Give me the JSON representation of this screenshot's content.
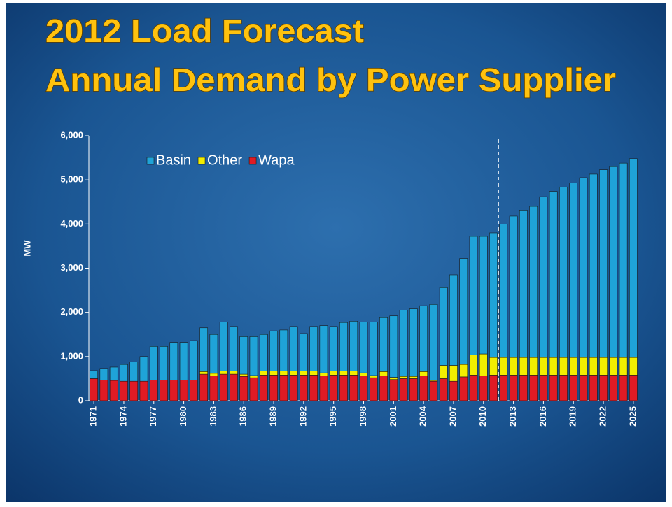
{
  "chart_data": {
    "type": "stacked_bar",
    "title": "2012 Load Forecast",
    "subtitle": "Annual Demand by Power Supplier",
    "y_label": "MW",
    "categories": [
      "1971",
      null,
      null,
      "1974",
      null,
      null,
      "1977",
      null,
      null,
      "1980",
      null,
      null,
      "1983",
      null,
      null,
      "1986",
      null,
      null,
      "1989",
      null,
      null,
      "1992",
      null,
      null,
      "1995",
      null,
      null,
      "1998",
      null,
      null,
      "2001",
      null,
      null,
      "2004",
      null,
      null,
      "2007",
      null,
      null,
      "2010",
      null,
      null,
      "2013",
      null,
      null,
      "2016",
      null,
      null,
      "2019",
      null,
      null,
      "2022",
      null,
      null,
      "2025"
    ],
    "series": [
      {
        "name": "Basin",
        "color": "#1fa3d8",
        "values": [
          180,
          260,
          300,
          380,
          440,
          560,
          760,
          760,
          850,
          850,
          890,
          990,
          880,
          1110,
          1010,
          850,
          880,
          830,
          910,
          930,
          1010,
          850,
          1010,
          1070,
          1010,
          1100,
          1130,
          1150,
          1210,
          1220,
          1390,
          1500,
          1530,
          1490,
          1720,
          1760,
          2050,
          2400,
          2680,
          2660,
          2820,
          3020,
          3200,
          3320,
          3420,
          3640,
          3760,
          3860,
          3950,
          4070,
          4150,
          4250,
          4320,
          4400,
          4500
        ]
      },
      {
        "name": "Other",
        "color": "#f2ee00",
        "values": [
          0,
          0,
          0,
          0,
          0,
          0,
          0,
          0,
          0,
          0,
          0,
          60,
          60,
          70,
          70,
          50,
          50,
          90,
          90,
          90,
          90,
          90,
          90,
          70,
          90,
          90,
          90,
          70,
          50,
          100,
          50,
          50,
          50,
          100,
          20,
          300,
          360,
          280,
          460,
          500,
          400,
          400,
          400,
          400,
          400,
          400,
          400,
          400,
          400,
          400,
          400,
          400,
          400,
          400,
          400
        ]
      },
      {
        "name": "Wapa",
        "color": "#e01b24",
        "values": [
          500,
          470,
          460,
          440,
          440,
          440,
          470,
          470,
          470,
          470,
          470,
          600,
          560,
          600,
          600,
          550,
          520,
          580,
          580,
          580,
          580,
          580,
          580,
          560,
          580,
          580,
          580,
          560,
          520,
          560,
          480,
          500,
          500,
          560,
          440,
          500,
          440,
          540,
          580,
          560,
          580,
          580,
          580,
          580,
          580,
          580,
          580,
          580,
          580,
          580,
          580,
          580,
          580,
          580,
          580
        ]
      }
    ],
    "ylim": [
      0,
      6000
    ],
    "yticks": [
      0,
      {
        "value": 1000,
        "label": "1,000"
      },
      {
        "value": 2000,
        "label": "2,000"
      },
      {
        "value": 3000,
        "label": "3,000"
      },
      {
        "value": 4000,
        "label": "4,000"
      },
      {
        "value": 5000,
        "label": "5,000"
      },
      {
        "value": 6000,
        "label": "6,000"
      }
    ],
    "legend": "top-left"
  }
}
